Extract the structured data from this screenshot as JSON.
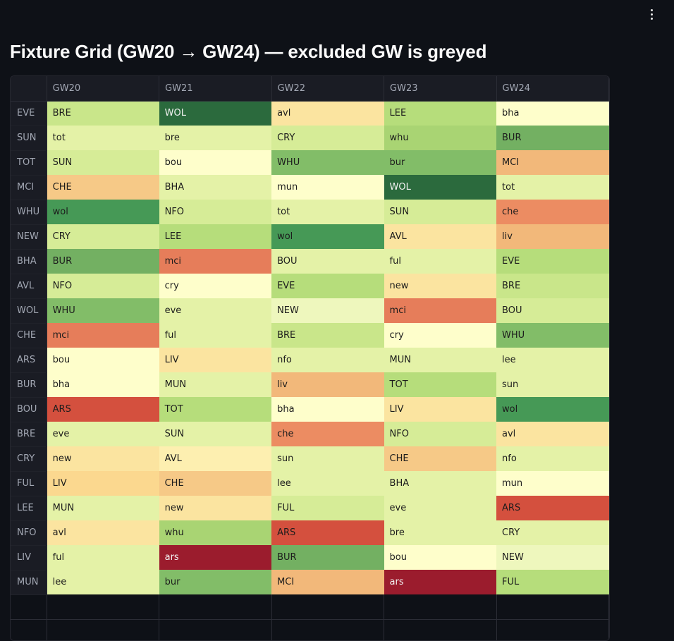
{
  "page": {
    "title": "Fixture Grid (GW20 → GW24) — excluded GW is greyed",
    "menu_icon": "kebab-menu-icon"
  },
  "grid": {
    "corner_label": "",
    "columns": [
      "GW20",
      "GW21",
      "GW22",
      "GW23",
      "GW24"
    ],
    "rows": [
      {
        "team": "EVE",
        "cells": [
          {
            "t": "BRE",
            "c": "#c9e68a"
          },
          {
            "t": "WOL",
            "c": "#2b6a3d"
          },
          {
            "t": "avl",
            "c": "#fbe4a0"
          },
          {
            "t": "LEE",
            "c": "#b6dd7b"
          },
          {
            "t": "bha",
            "c": "#fefecb"
          }
        ]
      },
      {
        "team": "SUN",
        "cells": [
          {
            "t": "tot",
            "c": "#e4f2a7"
          },
          {
            "t": "bre",
            "c": "#e4f2a7"
          },
          {
            "t": "CRY",
            "c": "#d6ec97"
          },
          {
            "t": "whu",
            "c": "#a9d473"
          },
          {
            "t": "BUR",
            "c": "#73b062"
          }
        ]
      },
      {
        "team": "TOT",
        "cells": [
          {
            "t": "SUN",
            "c": "#d6ec97"
          },
          {
            "t": "bou",
            "c": "#fefecb"
          },
          {
            "t": "WHU",
            "c": "#82bd68"
          },
          {
            "t": "bur",
            "c": "#82bd68"
          },
          {
            "t": "MCI",
            "c": "#f2b87a"
          }
        ]
      },
      {
        "team": "MCI",
        "cells": [
          {
            "t": "CHE",
            "c": "#f6c987"
          },
          {
            "t": "BHA",
            "c": "#e4f2a7"
          },
          {
            "t": "mun",
            "c": "#fefecb"
          },
          {
            "t": "WOL",
            "c": "#2b6a3d"
          },
          {
            "t": "tot",
            "c": "#e4f2a7"
          }
        ]
      },
      {
        "team": "WHU",
        "cells": [
          {
            "t": "wol",
            "c": "#469956"
          },
          {
            "t": "NFO",
            "c": "#d6ec97"
          },
          {
            "t": "tot",
            "c": "#e4f2a7"
          },
          {
            "t": "SUN",
            "c": "#d6ec97"
          },
          {
            "t": "che",
            "c": "#ec8c62"
          }
        ]
      },
      {
        "team": "NEW",
        "cells": [
          {
            "t": "CRY",
            "c": "#d6ec97"
          },
          {
            "t": "LEE",
            "c": "#b6dd7b"
          },
          {
            "t": "wol",
            "c": "#469956"
          },
          {
            "t": "AVL",
            "c": "#fbe4a0"
          },
          {
            "t": "liv",
            "c": "#f2b87a"
          }
        ]
      },
      {
        "team": "BHA",
        "cells": [
          {
            "t": "BUR",
            "c": "#73b062"
          },
          {
            "t": "mci",
            "c": "#e67d5a"
          },
          {
            "t": "BOU",
            "c": "#e4f2a7"
          },
          {
            "t": "ful",
            "c": "#e4f2a7"
          },
          {
            "t": "EVE",
            "c": "#b6dd7b"
          }
        ]
      },
      {
        "team": "AVL",
        "cells": [
          {
            "t": "NFO",
            "c": "#d6ec97"
          },
          {
            "t": "cry",
            "c": "#fefecb"
          },
          {
            "t": "EVE",
            "c": "#b6dd7b"
          },
          {
            "t": "new",
            "c": "#fbe4a0"
          },
          {
            "t": "BRE",
            "c": "#c9e68a"
          }
        ]
      },
      {
        "team": "WOL",
        "cells": [
          {
            "t": "WHU",
            "c": "#82bd68"
          },
          {
            "t": "eve",
            "c": "#e4f2a7"
          },
          {
            "t": "NEW",
            "c": "#eef7bd"
          },
          {
            "t": "mci",
            "c": "#e67d5a"
          },
          {
            "t": "BOU",
            "c": "#d6ec97"
          }
        ]
      },
      {
        "team": "CHE",
        "cells": [
          {
            "t": "mci",
            "c": "#e67d5a"
          },
          {
            "t": "ful",
            "c": "#e4f2a7"
          },
          {
            "t": "BRE",
            "c": "#c9e68a"
          },
          {
            "t": "cry",
            "c": "#fefecb"
          },
          {
            "t": "WHU",
            "c": "#82bd68"
          }
        ]
      },
      {
        "team": "ARS",
        "cells": [
          {
            "t": "bou",
            "c": "#fefecb"
          },
          {
            "t": "LIV",
            "c": "#fbe4a0"
          },
          {
            "t": "nfo",
            "c": "#e4f2a7"
          },
          {
            "t": "MUN",
            "c": "#e4f2a7"
          },
          {
            "t": "lee",
            "c": "#e4f2a7"
          }
        ]
      },
      {
        "team": "BUR",
        "cells": [
          {
            "t": "bha",
            "c": "#fefecb"
          },
          {
            "t": "MUN",
            "c": "#e4f2a7"
          },
          {
            "t": "liv",
            "c": "#f2b87a"
          },
          {
            "t": "TOT",
            "c": "#b6dd7b"
          },
          {
            "t": "sun",
            "c": "#e4f2a7"
          }
        ]
      },
      {
        "team": "BOU",
        "cells": [
          {
            "t": "ARS",
            "c": "#d4503e"
          },
          {
            "t": "TOT",
            "c": "#b6dd7b"
          },
          {
            "t": "bha",
            "c": "#fefecb"
          },
          {
            "t": "LIV",
            "c": "#fbe4a0"
          },
          {
            "t": "wol",
            "c": "#469956"
          }
        ]
      },
      {
        "team": "BRE",
        "cells": [
          {
            "t": "eve",
            "c": "#e4f2a7"
          },
          {
            "t": "SUN",
            "c": "#e4f2a7"
          },
          {
            "t": "che",
            "c": "#ec8c62"
          },
          {
            "t": "NFO",
            "c": "#d6ec97"
          },
          {
            "t": "avl",
            "c": "#fbe4a0"
          }
        ]
      },
      {
        "team": "CRY",
        "cells": [
          {
            "t": "new",
            "c": "#fbe4a0"
          },
          {
            "t": "AVL",
            "c": "#fdefb0"
          },
          {
            "t": "sun",
            "c": "#e4f2a7"
          },
          {
            "t": "CHE",
            "c": "#f6c987"
          },
          {
            "t": "nfo",
            "c": "#e4f2a7"
          }
        ]
      },
      {
        "team": "FUL",
        "cells": [
          {
            "t": "LIV",
            "c": "#fbd88f"
          },
          {
            "t": "CHE",
            "c": "#f6c987"
          },
          {
            "t": "lee",
            "c": "#e4f2a7"
          },
          {
            "t": "BHA",
            "c": "#e4f2a7"
          },
          {
            "t": "mun",
            "c": "#fefecb"
          }
        ]
      },
      {
        "team": "LEE",
        "cells": [
          {
            "t": "MUN",
            "c": "#e4f2a7"
          },
          {
            "t": "new",
            "c": "#fbe4a0"
          },
          {
            "t": "FUL",
            "c": "#d6ec97"
          },
          {
            "t": "eve",
            "c": "#e4f2a7"
          },
          {
            "t": "ARS",
            "c": "#d4503e"
          }
        ]
      },
      {
        "team": "NFO",
        "cells": [
          {
            "t": "avl",
            "c": "#fbe4a0"
          },
          {
            "t": "whu",
            "c": "#a9d473"
          },
          {
            "t": "ARS",
            "c": "#d4503e"
          },
          {
            "t": "bre",
            "c": "#e4f2a7"
          },
          {
            "t": "CRY",
            "c": "#e4f2a7"
          }
        ]
      },
      {
        "team": "LIV",
        "cells": [
          {
            "t": "ful",
            "c": "#e4f2a7"
          },
          {
            "t": "ars",
            "c": "#9b1c2d"
          },
          {
            "t": "BUR",
            "c": "#73b062"
          },
          {
            "t": "bou",
            "c": "#fefecb"
          },
          {
            "t": "NEW",
            "c": "#eef7bd"
          }
        ]
      },
      {
        "team": "MUN",
        "cells": [
          {
            "t": "lee",
            "c": "#e4f2a7"
          },
          {
            "t": "bur",
            "c": "#82bd68"
          },
          {
            "t": "MCI",
            "c": "#f2b87a"
          },
          {
            "t": "ars",
            "c": "#9b1c2d"
          },
          {
            "t": "FUL",
            "c": "#b6dd7b"
          }
        ]
      }
    ]
  }
}
